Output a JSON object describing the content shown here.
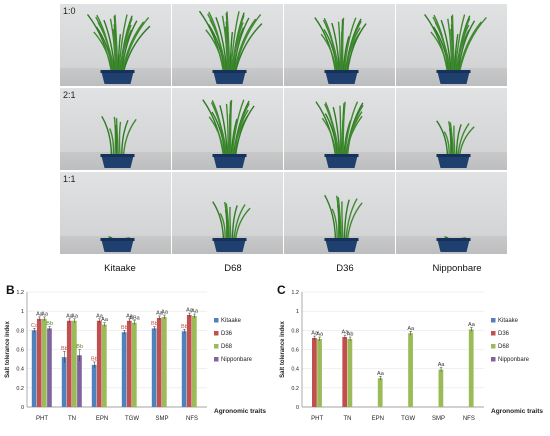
{
  "panel_labels": {
    "a": "A",
    "b": "B",
    "c": "C"
  },
  "photo_grid": {
    "rows": [
      {
        "ratio": "1:0",
        "heights": [
          0.9,
          0.95,
          0.85,
          0.9
        ],
        "density": [
          1.0,
          1.0,
          0.85,
          0.95
        ]
      },
      {
        "ratio": "2:1",
        "heights": [
          0.62,
          0.88,
          0.85,
          0.55
        ],
        "density": [
          0.35,
          0.85,
          0.8,
          0.4
        ]
      },
      {
        "ratio": "1:1",
        "heights": [
          0.05,
          0.6,
          0.7,
          0.05
        ],
        "density": [
          0.05,
          0.4,
          0.4,
          0.05
        ]
      }
    ],
    "varieties": [
      "Kitaake",
      "D68",
      "D36",
      "Nipponbare"
    ]
  },
  "colors": {
    "Kitaake": "#4f81bd",
    "D36": "#c0504d",
    "D68": "#9bbb59",
    "Nipponbare": "#8064a2",
    "plant_green": "#3f8a2f",
    "pot": "#1f3f6f",
    "annotation_red": "#c0504d",
    "annotation_green": "#4f8a2f",
    "annotation_dark": "#333333"
  },
  "chart_data": [
    {
      "panel": "B",
      "type": "bar",
      "ylabel": "Salt tolerance index",
      "xlabel": "Agronomic traits",
      "ylim": [
        0,
        1.2
      ],
      "yticks": [
        "0",
        "0.2",
        "0.4",
        "0.6",
        "0.8",
        "1",
        "1.2"
      ],
      "categories": [
        "PHT",
        "TN",
        "EPN",
        "TGW",
        "SMP",
        "NFS"
      ],
      "legend_position": "right",
      "series": [
        {
          "name": "Kitaake",
          "values": [
            0.8,
            0.52,
            0.44,
            0.78,
            0.82,
            0.79
          ],
          "errors": [
            0.02,
            0.06,
            0.03,
            0.02,
            0.02,
            0.02
          ],
          "labels": [
            "Cc",
            "Bb",
            "Bb",
            "Bb",
            "Bb",
            "Bb"
          ]
        },
        {
          "name": "D36",
          "values": [
            0.92,
            0.9,
            0.9,
            0.9,
            0.93,
            0.96
          ],
          "errors": [
            0.02,
            0.02,
            0.02,
            0.02,
            0.02,
            0.02
          ],
          "labels": [
            "Aa",
            "Aa",
            "Aa",
            "Aa",
            "Aa",
            "Aa"
          ]
        },
        {
          "name": "D68",
          "values": [
            0.92,
            0.9,
            0.86,
            0.88,
            0.94,
            0.95
          ],
          "errors": [
            0.02,
            0.02,
            0.02,
            0.02,
            0.02,
            0.02
          ],
          "labels": [
            "Aa",
            "Aa",
            "Aa",
            "ABa",
            "Aa",
            "Aa"
          ]
        },
        {
          "name": "Nipponbare",
          "values": [
            0.82,
            0.54,
            0.0,
            0.0,
            0.0,
            0.0
          ],
          "errors": [
            0.02,
            0.06,
            0.0,
            0.0,
            0.0,
            0.0
          ],
          "labels": [
            "Bb",
            "Bb",
            "",
            "",
            "",
            ""
          ]
        }
      ]
    },
    {
      "panel": "C",
      "type": "bar",
      "ylabel": "Salt tolerance index",
      "xlabel": "Agronomic traits",
      "ylim": [
        0,
        1.2
      ],
      "yticks": [
        "0",
        "0.2",
        "0.4",
        "0.6",
        "0.8",
        "1",
        "1.2"
      ],
      "categories": [
        "PHT",
        "TN",
        "EPN",
        "TGW",
        "SMP",
        "NFS"
      ],
      "legend_position": "right",
      "series": [
        {
          "name": "Kitaake",
          "values": [
            0,
            0,
            0,
            0,
            0,
            0
          ],
          "errors": [
            0,
            0,
            0,
            0,
            0,
            0
          ],
          "labels": [
            "",
            "",
            "",
            "",
            "",
            ""
          ]
        },
        {
          "name": "D36",
          "values": [
            0.72,
            0.73,
            0,
            0,
            0,
            0
          ],
          "errors": [
            0.02,
            0.02,
            0,
            0,
            0,
            0
          ],
          "labels": [
            "Aa",
            "Aa",
            "",
            "",
            "",
            ""
          ]
        },
        {
          "name": "D68",
          "values": [
            0.71,
            0.71,
            0.3,
            0.77,
            0.39,
            0.81
          ],
          "errors": [
            0.02,
            0.02,
            0.02,
            0.02,
            0.02,
            0.02
          ],
          "labels": [
            "Aa",
            "Ab",
            "Aa",
            "Aa",
            "Aa",
            "Aa"
          ]
        },
        {
          "name": "Nipponbare",
          "values": [
            0,
            0,
            0,
            0,
            0,
            0
          ],
          "errors": [
            0,
            0,
            0,
            0,
            0,
            0
          ],
          "labels": [
            "",
            "",
            "",
            "",
            "",
            ""
          ]
        }
      ]
    }
  ]
}
